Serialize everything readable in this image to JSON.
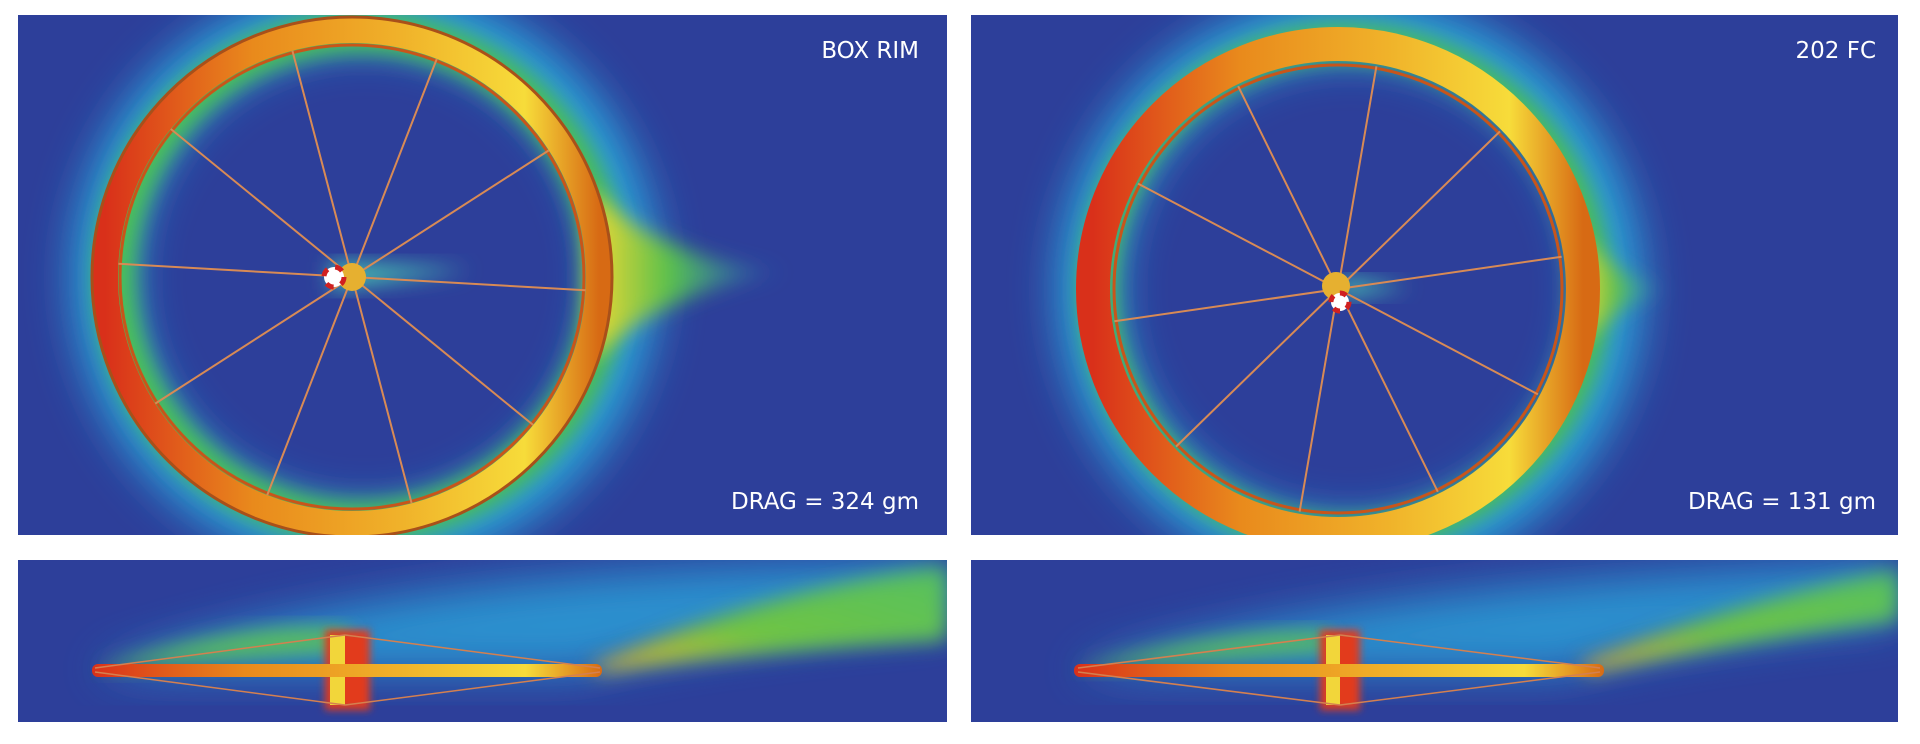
{
  "panels": [
    {
      "label": "BOX RIM",
      "drag": "DRAG =  324 gm"
    },
    {
      "label": "202 FC",
      "drag": "DRAG =  131 gm"
    }
  ]
}
